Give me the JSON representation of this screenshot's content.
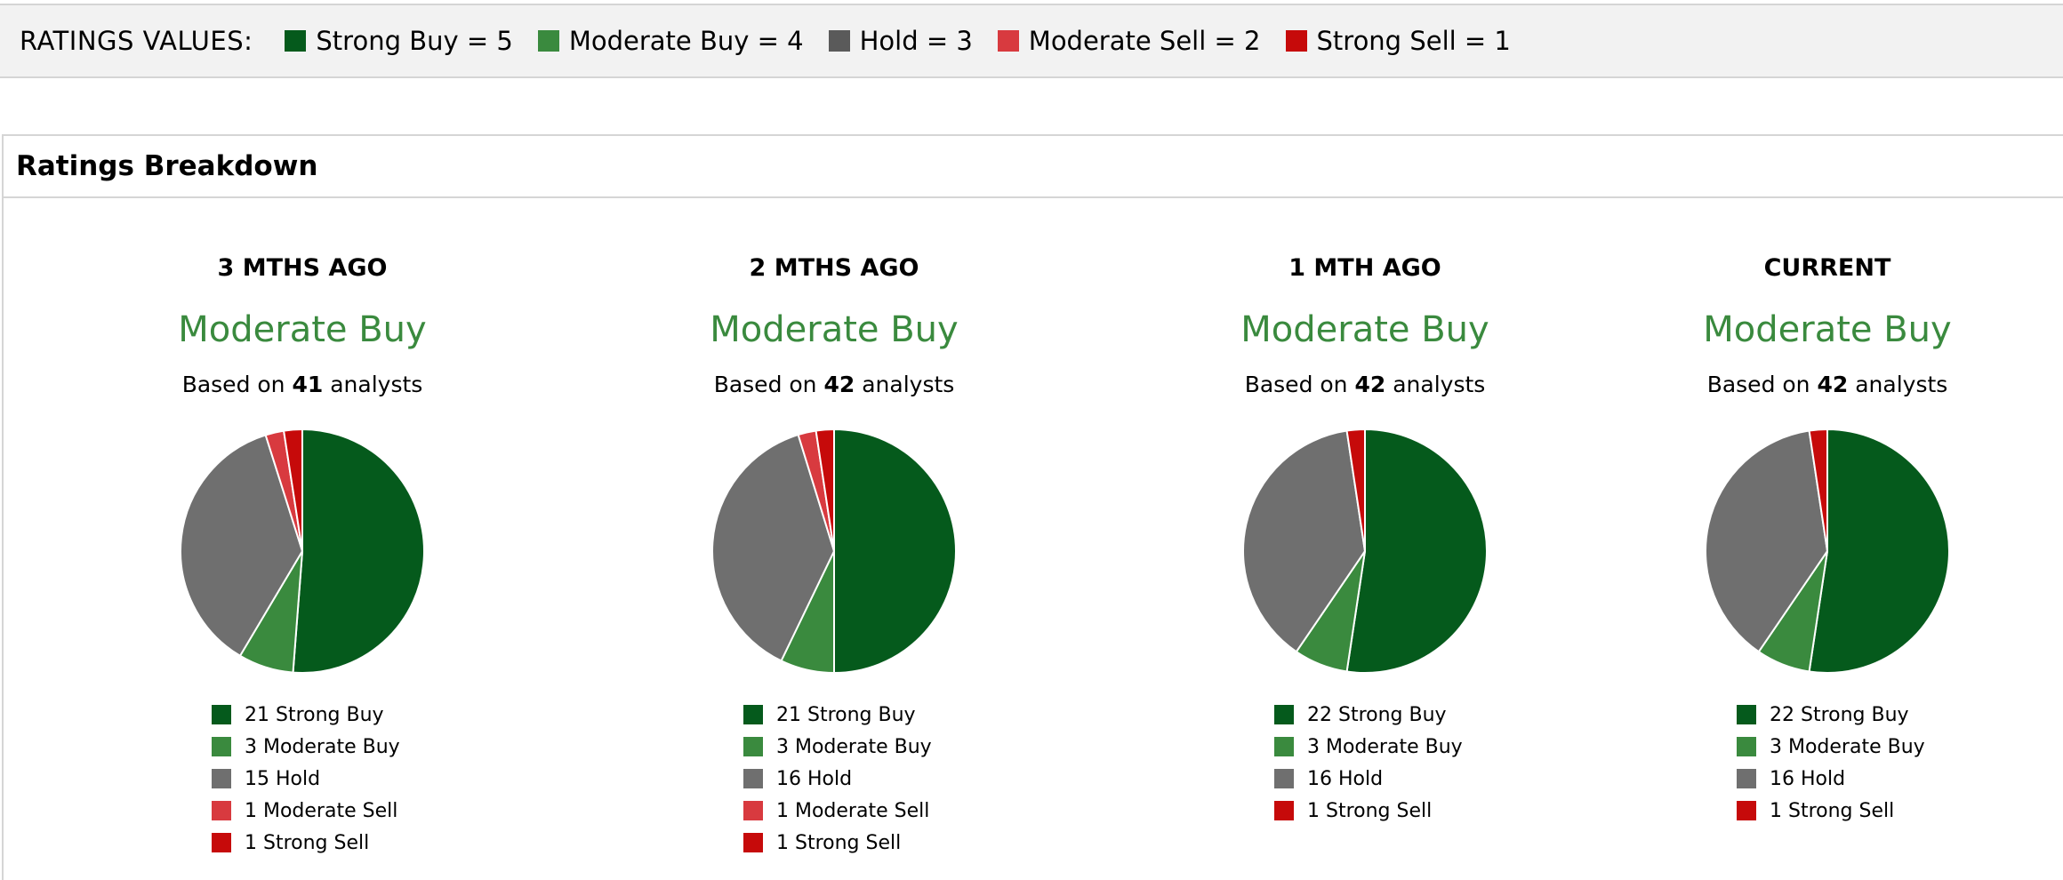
{
  "ratings_values": {
    "title": "RATINGS VALUES:",
    "items": [
      {
        "label": "Strong Buy = 5",
        "color": "#055a1c"
      },
      {
        "label": "Moderate Buy = 4",
        "color": "#3a8a3e"
      },
      {
        "label": "Hold = 3",
        "color": "#5a5a5a"
      },
      {
        "label": "Moderate Sell = 2",
        "color": "#d83a3f"
      },
      {
        "label": "Strong Sell = 1",
        "color": "#c60a0a"
      }
    ]
  },
  "breakdown": {
    "title": "Ratings Breakdown"
  },
  "chart_data": [
    {
      "type": "pie",
      "title": "3 MTHS AGO",
      "consensus": "Moderate Buy",
      "analysts_prefix": "Based on ",
      "analysts_count": "41",
      "analysts_suffix": " analysts",
      "slices": [
        {
          "label": "21 Strong Buy",
          "value": 21,
          "color": "#055a1c"
        },
        {
          "label": "3 Moderate Buy",
          "value": 3,
          "color": "#3a8a3e"
        },
        {
          "label": "15 Hold",
          "value": 15,
          "color": "#6f6f6f"
        },
        {
          "label": "1 Moderate Sell",
          "value": 1,
          "color": "#d83a3f"
        },
        {
          "label": "1 Strong Sell",
          "value": 1,
          "color": "#c60a0a"
        }
      ]
    },
    {
      "type": "pie",
      "title": "2 MTHS AGO",
      "consensus": "Moderate Buy",
      "analysts_prefix": "Based on ",
      "analysts_count": "42",
      "analysts_suffix": " analysts",
      "slices": [
        {
          "label": "21 Strong Buy",
          "value": 21,
          "color": "#055a1c"
        },
        {
          "label": "3 Moderate Buy",
          "value": 3,
          "color": "#3a8a3e"
        },
        {
          "label": "16 Hold",
          "value": 16,
          "color": "#6f6f6f"
        },
        {
          "label": "1 Moderate Sell",
          "value": 1,
          "color": "#d83a3f"
        },
        {
          "label": "1 Strong Sell",
          "value": 1,
          "color": "#c60a0a"
        }
      ]
    },
    {
      "type": "pie",
      "title": "1 MTH AGO",
      "consensus": "Moderate Buy",
      "analysts_prefix": "Based on ",
      "analysts_count": "42",
      "analysts_suffix": " analysts",
      "slices": [
        {
          "label": "22 Strong Buy",
          "value": 22,
          "color": "#055a1c"
        },
        {
          "label": "3 Moderate Buy",
          "value": 3,
          "color": "#3a8a3e"
        },
        {
          "label": "16 Hold",
          "value": 16,
          "color": "#6f6f6f"
        },
        {
          "label": "1 Strong Sell",
          "value": 1,
          "color": "#c60a0a"
        }
      ]
    },
    {
      "type": "pie",
      "title": "CURRENT",
      "consensus": "Moderate Buy",
      "analysts_prefix": "Based on ",
      "analysts_count": "42",
      "analysts_suffix": " analysts",
      "slices": [
        {
          "label": "22 Strong Buy",
          "value": 22,
          "color": "#055a1c"
        },
        {
          "label": "3 Moderate Buy",
          "value": 3,
          "color": "#3a8a3e"
        },
        {
          "label": "16 Hold",
          "value": 16,
          "color": "#6f6f6f"
        },
        {
          "label": "1 Strong Sell",
          "value": 1,
          "color": "#c60a0a"
        }
      ]
    }
  ]
}
